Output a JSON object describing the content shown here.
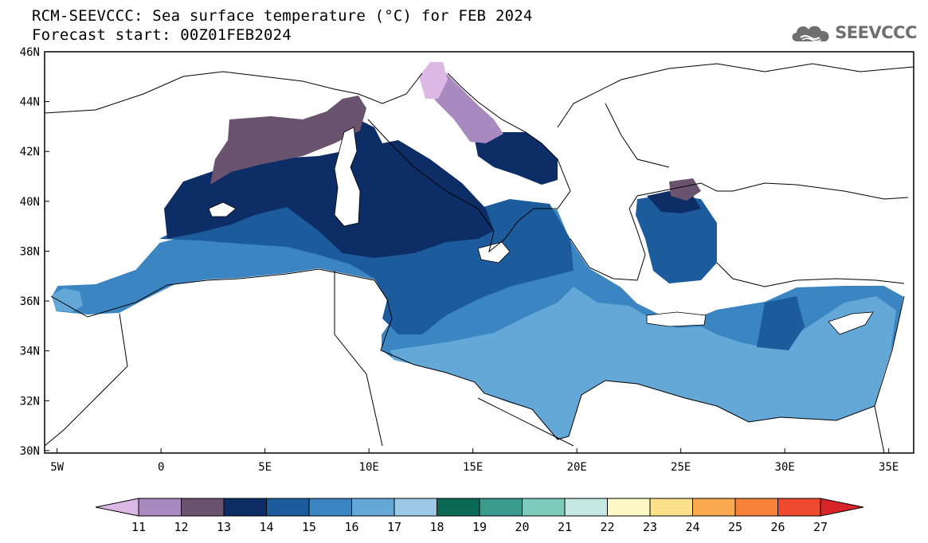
{
  "header": {
    "title_line1": "RCM-SEEVCCC: Sea surface temperature (°C) for FEB 2024",
    "title_line2": "Forecast start: 00Z01FEB2024",
    "logo_text": "SEEVCCC"
  },
  "map": {
    "lon_range": [
      -5.6,
      36.2
    ],
    "lat_range": [
      29.9,
      46.0
    ],
    "lon_ticks": [
      {
        "value": -5,
        "label": "5W"
      },
      {
        "value": 0,
        "label": "0"
      },
      {
        "value": 5,
        "label": "5E"
      },
      {
        "value": 10,
        "label": "10E"
      },
      {
        "value": 15,
        "label": "15E"
      },
      {
        "value": 20,
        "label": "20E"
      },
      {
        "value": 25,
        "label": "25E"
      },
      {
        "value": 30,
        "label": "30E"
      },
      {
        "value": 35,
        "label": "35E"
      }
    ],
    "lat_ticks": [
      {
        "value": 30,
        "label": "30N"
      },
      {
        "value": 32,
        "label": "32N"
      },
      {
        "value": 34,
        "label": "34N"
      },
      {
        "value": 36,
        "label": "36N"
      },
      {
        "value": 38,
        "label": "38N"
      },
      {
        "value": 40,
        "label": "40N"
      },
      {
        "value": 42,
        "label": "42N"
      },
      {
        "value": 44,
        "label": "44N"
      },
      {
        "value": 46,
        "label": "46N"
      }
    ],
    "colors": {
      "lt11": "#dcb8e4",
      "c11_12": "#a98ac0",
      "c12_13": "#6a536e",
      "c13_14": "#0c2d66",
      "c14_15": "#1d5c9c",
      "c15_16": "#3a85c2",
      "c16_17": "#64a8d8",
      "land": "#ffffff",
      "coast": "#000000"
    }
  },
  "colorbar": {
    "labels": [
      "11",
      "12",
      "13",
      "14",
      "15",
      "16",
      "17",
      "18",
      "19",
      "20",
      "21",
      "22",
      "23",
      "24",
      "25",
      "26",
      "27"
    ],
    "colors": [
      "#dcb8e4",
      "#a98ac0",
      "#6a536e",
      "#0c2d66",
      "#1d5c9c",
      "#3a85c2",
      "#64a8d8",
      "#9ccae6",
      "#0b6a55",
      "#3a9a8c",
      "#7ccbbd",
      "#c5e9e2",
      "#fdf8c4",
      "#fde08a",
      "#fcaa50",
      "#f8823a",
      "#ee4a30",
      "#d8252a"
    ]
  }
}
